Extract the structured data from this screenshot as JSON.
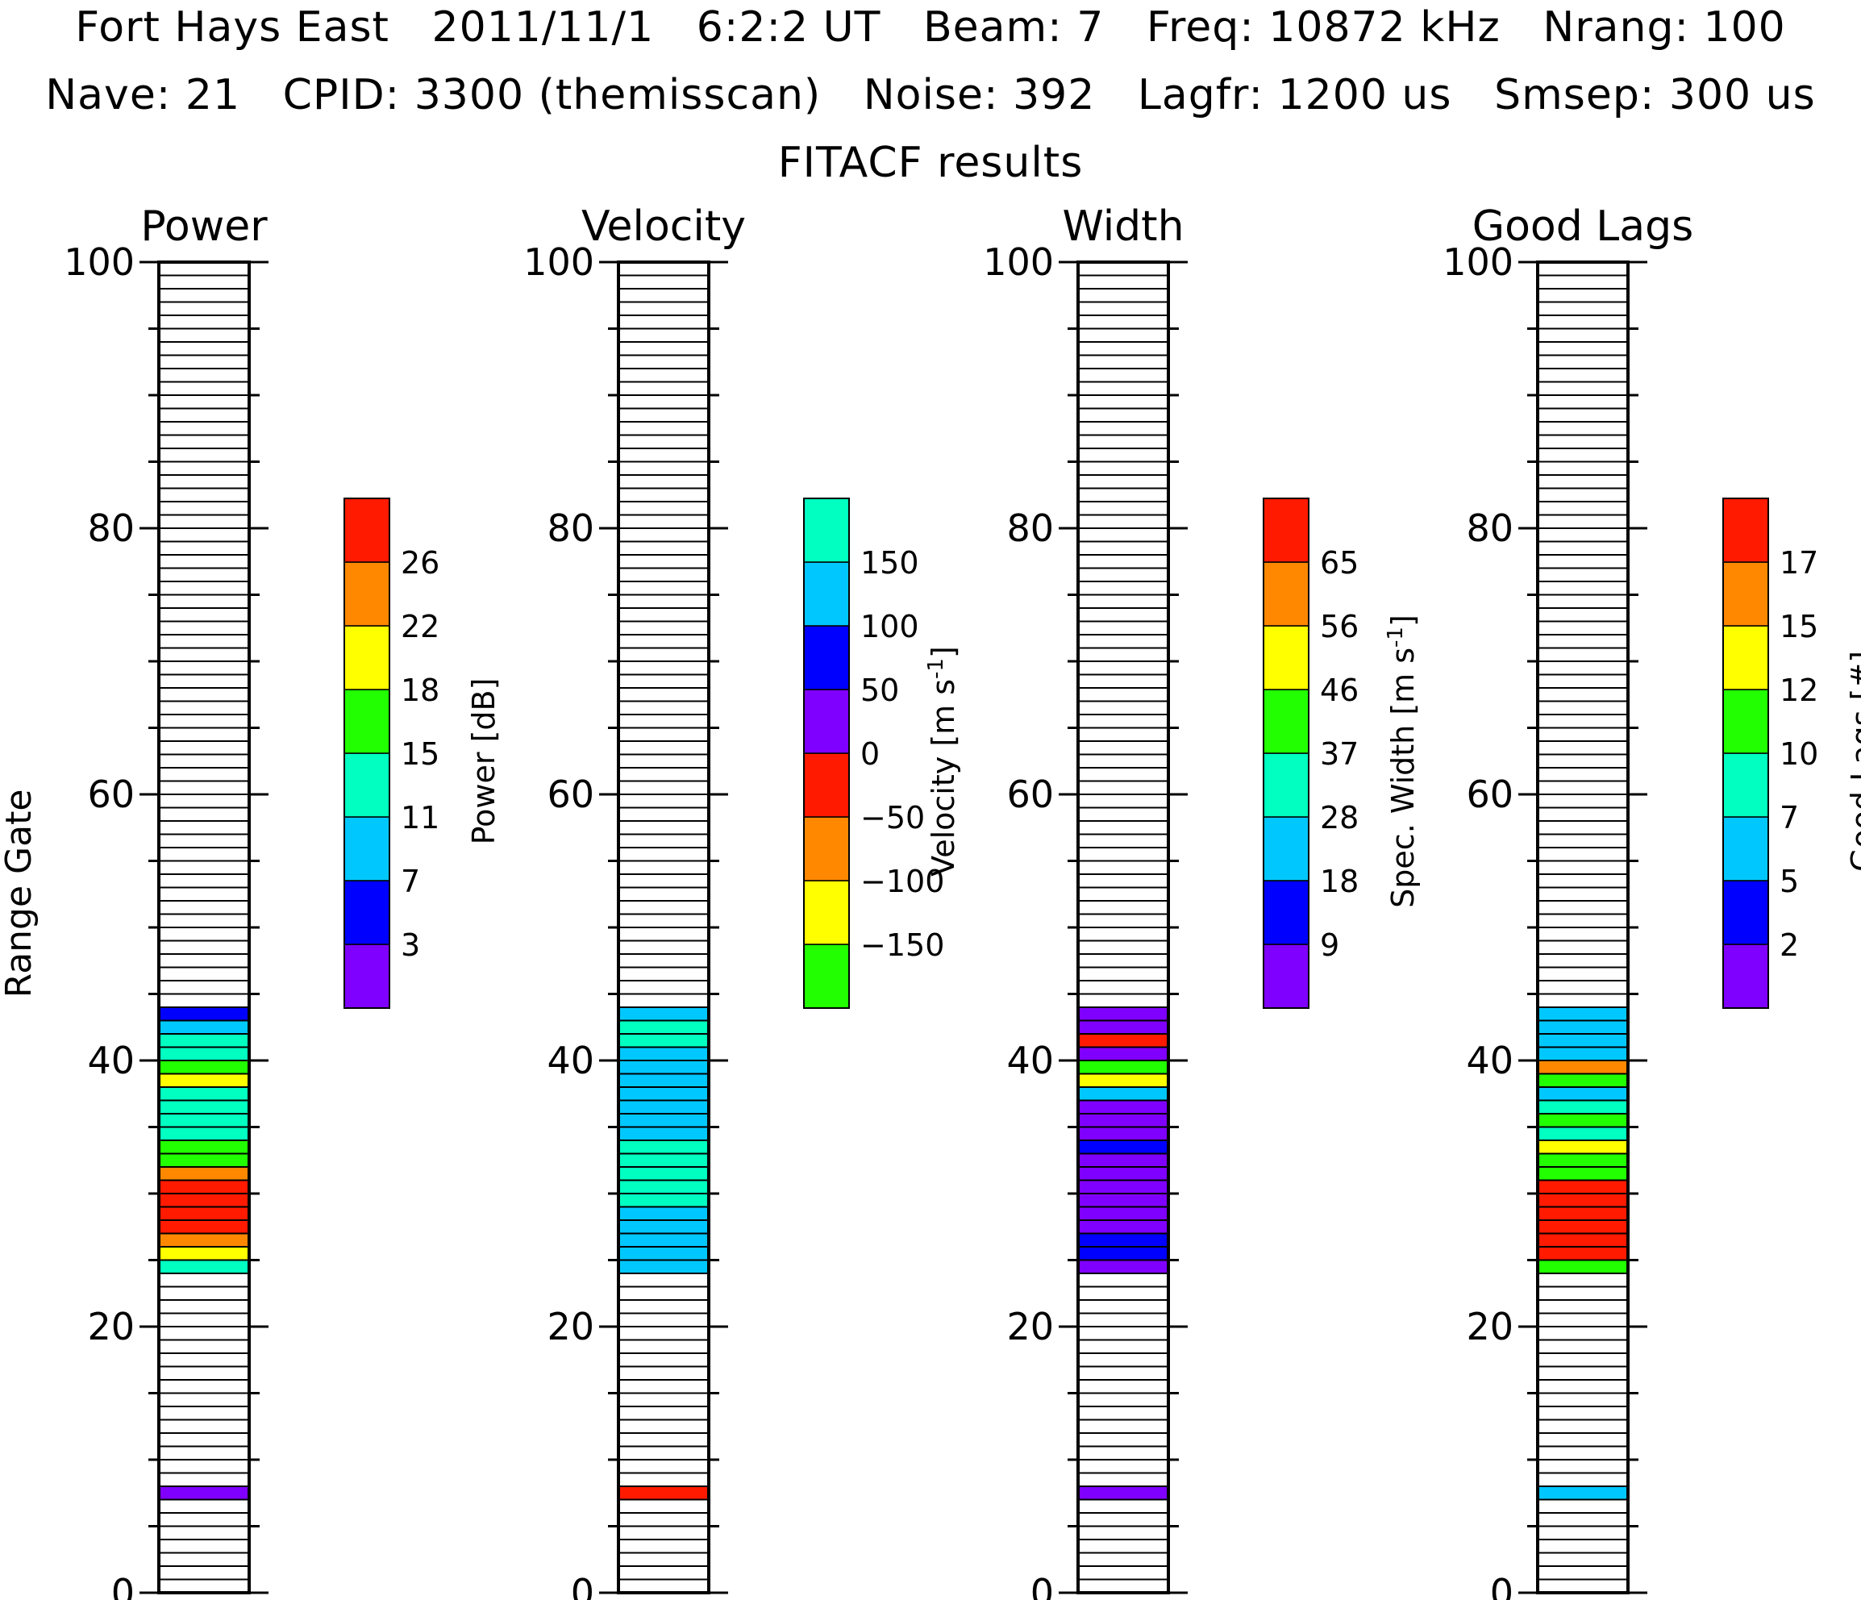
{
  "header": {
    "line1": "Fort Hays East   2011/11/1   6:2:2 UT   Beam: 7   Freq: 10872 kHz   Nrang: 100",
    "line2": "Nave: 21   CPID: 3300 (themisscan)   Noise: 392   Lagfr: 1200 us   Smsep: 300 us",
    "line3": "FITACF results"
  },
  "y_axis_label": "Range Gate",
  "chart_data": [
    {
      "type": "heatmap",
      "title": "Power",
      "ylabel": "Range Gate",
      "ylim": [
        0,
        100
      ],
      "yticks": [
        "0",
        "20",
        "40",
        "60",
        "80",
        "100"
      ],
      "colorbar": {
        "label": "Power [dB]",
        "ticks": [
          "3",
          "7",
          "11",
          "15",
          "18",
          "22",
          "26"
        ],
        "colors": [
          "#8000ff",
          "#0000ff",
          "#00c8ff",
          "#00ffc0",
          "#22ff00",
          "#ffff00",
          "#ff8800",
          "#ff1a00"
        ]
      },
      "gates": [
        {
          "gate": 7,
          "bin": 0
        },
        {
          "gate": 24,
          "bin": 3
        },
        {
          "gate": 25,
          "bin": 5
        },
        {
          "gate": 26,
          "bin": 6
        },
        {
          "gate": 27,
          "bin": 7
        },
        {
          "gate": 28,
          "bin": 7
        },
        {
          "gate": 29,
          "bin": 7
        },
        {
          "gate": 30,
          "bin": 7
        },
        {
          "gate": 31,
          "bin": 6
        },
        {
          "gate": 32,
          "bin": 4
        },
        {
          "gate": 33,
          "bin": 4
        },
        {
          "gate": 34,
          "bin": 3
        },
        {
          "gate": 35,
          "bin": 3
        },
        {
          "gate": 36,
          "bin": 3
        },
        {
          "gate": 37,
          "bin": 3
        },
        {
          "gate": 38,
          "bin": 5
        },
        {
          "gate": 39,
          "bin": 4
        },
        {
          "gate": 40,
          "bin": 3
        },
        {
          "gate": 41,
          "bin": 3
        },
        {
          "gate": 42,
          "bin": 2
        },
        {
          "gate": 43,
          "bin": 1
        }
      ]
    },
    {
      "type": "heatmap",
      "title": "Velocity",
      "ylim": [
        0,
        100
      ],
      "yticks": [
        "0",
        "20",
        "40",
        "60",
        "80",
        "100"
      ],
      "colorbar": {
        "label": "Velocity [m s-1]",
        "ticks": [
          "−150",
          "−100",
          "−50",
          "0",
          "50",
          "100",
          "150"
        ],
        "colors": [
          "#22ff00",
          "#ffff00",
          "#ff8800",
          "#ff1a00",
          "#8000ff",
          "#0000ff",
          "#00c8ff",
          "#00ffc0"
        ]
      },
      "gates": [
        {
          "gate": 7,
          "bin": 3
        },
        {
          "gate": 24,
          "bin": 6
        },
        {
          "gate": 25,
          "bin": 6
        },
        {
          "gate": 26,
          "bin": 6
        },
        {
          "gate": 27,
          "bin": 6
        },
        {
          "gate": 28,
          "bin": 6
        },
        {
          "gate": 29,
          "bin": 7
        },
        {
          "gate": 30,
          "bin": 7
        },
        {
          "gate": 31,
          "bin": 7
        },
        {
          "gate": 32,
          "bin": 7
        },
        {
          "gate": 33,
          "bin": 7
        },
        {
          "gate": 34,
          "bin": 6
        },
        {
          "gate": 35,
          "bin": 6
        },
        {
          "gate": 36,
          "bin": 6
        },
        {
          "gate": 37,
          "bin": 6
        },
        {
          "gate": 38,
          "bin": 6
        },
        {
          "gate": 39,
          "bin": 6
        },
        {
          "gate": 40,
          "bin": 6
        },
        {
          "gate": 41,
          "bin": 7
        },
        {
          "gate": 42,
          "bin": 7
        },
        {
          "gate": 43,
          "bin": 6
        }
      ]
    },
    {
      "type": "heatmap",
      "title": "Width",
      "ylim": [
        0,
        100
      ],
      "yticks": [
        "0",
        "20",
        "40",
        "60",
        "80",
        "100"
      ],
      "colorbar": {
        "label": "Spec. Width [m s-1]",
        "ticks": [
          "9",
          "18",
          "28",
          "37",
          "46",
          "56",
          "65"
        ],
        "colors": [
          "#8000ff",
          "#0000ff",
          "#00c8ff",
          "#00ffc0",
          "#22ff00",
          "#ffff00",
          "#ff8800",
          "#ff1a00"
        ]
      },
      "gates": [
        {
          "gate": 7,
          "bin": 0
        },
        {
          "gate": 24,
          "bin": 0
        },
        {
          "gate": 25,
          "bin": 1
        },
        {
          "gate": 26,
          "bin": 1
        },
        {
          "gate": 27,
          "bin": 0
        },
        {
          "gate": 28,
          "bin": 0
        },
        {
          "gate": 29,
          "bin": 0
        },
        {
          "gate": 30,
          "bin": 0
        },
        {
          "gate": 31,
          "bin": 0
        },
        {
          "gate": 32,
          "bin": 0
        },
        {
          "gate": 33,
          "bin": 1
        },
        {
          "gate": 34,
          "bin": 0
        },
        {
          "gate": 35,
          "bin": 0
        },
        {
          "gate": 36,
          "bin": 0
        },
        {
          "gate": 37,
          "bin": 2
        },
        {
          "gate": 38,
          "bin": 5
        },
        {
          "gate": 39,
          "bin": 4
        },
        {
          "gate": 40,
          "bin": 0
        },
        {
          "gate": 41,
          "bin": 7
        },
        {
          "gate": 42,
          "bin": 0
        },
        {
          "gate": 43,
          "bin": 0
        }
      ]
    },
    {
      "type": "heatmap",
      "title": "Good Lags",
      "ylim": [
        0,
        100
      ],
      "yticks": [
        "0",
        "20",
        "40",
        "60",
        "80",
        "100"
      ],
      "colorbar": {
        "label": "Good Lags [#]",
        "ticks": [
          "2",
          "5",
          "7",
          "10",
          "12",
          "15",
          "17"
        ],
        "colors": [
          "#8000ff",
          "#0000ff",
          "#00c8ff",
          "#00ffc0",
          "#22ff00",
          "#ffff00",
          "#ff8800",
          "#ff1a00"
        ]
      },
      "gates": [
        {
          "gate": 7,
          "bin": 2
        },
        {
          "gate": 24,
          "bin": 4
        },
        {
          "gate": 25,
          "bin": 7
        },
        {
          "gate": 26,
          "bin": 7
        },
        {
          "gate": 27,
          "bin": 7
        },
        {
          "gate": 28,
          "bin": 7
        },
        {
          "gate": 29,
          "bin": 7
        },
        {
          "gate": 30,
          "bin": 7
        },
        {
          "gate": 31,
          "bin": 4
        },
        {
          "gate": 32,
          "bin": 4
        },
        {
          "gate": 33,
          "bin": 5
        },
        {
          "gate": 34,
          "bin": 3
        },
        {
          "gate": 35,
          "bin": 4
        },
        {
          "gate": 36,
          "bin": 3
        },
        {
          "gate": 37,
          "bin": 2
        },
        {
          "gate": 38,
          "bin": 4
        },
        {
          "gate": 39,
          "bin": 6
        },
        {
          "gate": 40,
          "bin": 2
        },
        {
          "gate": 41,
          "bin": 2
        },
        {
          "gate": 42,
          "bin": 2
        },
        {
          "gate": 43,
          "bin": 2
        }
      ]
    }
  ]
}
